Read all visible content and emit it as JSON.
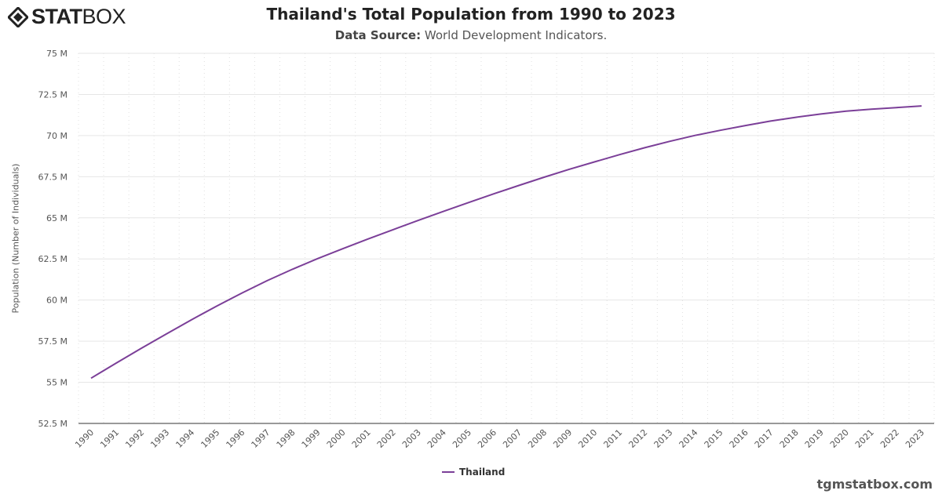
{
  "logo": {
    "bold": "STAT",
    "light": "BOX"
  },
  "watermark": "tgmstatbox.com",
  "chart_data": {
    "type": "line",
    "title": "Thailand's Total Population from 1990 to 2023",
    "subtitle_label": "Data Source:",
    "subtitle_text": "World Development Indicators.",
    "xlabel": "",
    "ylabel": "Population (Number of Individuals)",
    "ylim": [
      52500000,
      75000000
    ],
    "yticks": [
      52500000,
      55000000,
      57500000,
      60000000,
      62500000,
      65000000,
      67500000,
      70000000,
      72500000,
      75000000
    ],
    "ytick_labels": [
      "52.5 M",
      "55 M",
      "57.5 M",
      "60 M",
      "62.5 M",
      "65 M",
      "67.5 M",
      "70 M",
      "72.5 M",
      "75 M"
    ],
    "grid": true,
    "legend_position": "bottom-center",
    "categories": [
      "1990",
      "1991",
      "1992",
      "1993",
      "1994",
      "1995",
      "1996",
      "1997",
      "1998",
      "1999",
      "2000",
      "2001",
      "2002",
      "2003",
      "2004",
      "2005",
      "2006",
      "2007",
      "2008",
      "2009",
      "2010",
      "2011",
      "2012",
      "2013",
      "2014",
      "2015",
      "2016",
      "2017",
      "2018",
      "2019",
      "2020",
      "2021",
      "2022",
      "2023"
    ],
    "series": [
      {
        "name": "Thailand",
        "color": "#7b3f98",
        "values": [
          55250000,
          56170000,
          57070000,
          57950000,
          58810000,
          59640000,
          60430000,
          61180000,
          61870000,
          62520000,
          63120000,
          63710000,
          64280000,
          64840000,
          65390000,
          65930000,
          66460000,
          66970000,
          67470000,
          67950000,
          68400000,
          68840000,
          69260000,
          69650000,
          70010000,
          70320000,
          70610000,
          70880000,
          71110000,
          71310000,
          71480000,
          71600000,
          71700000,
          71800000
        ]
      }
    ]
  }
}
